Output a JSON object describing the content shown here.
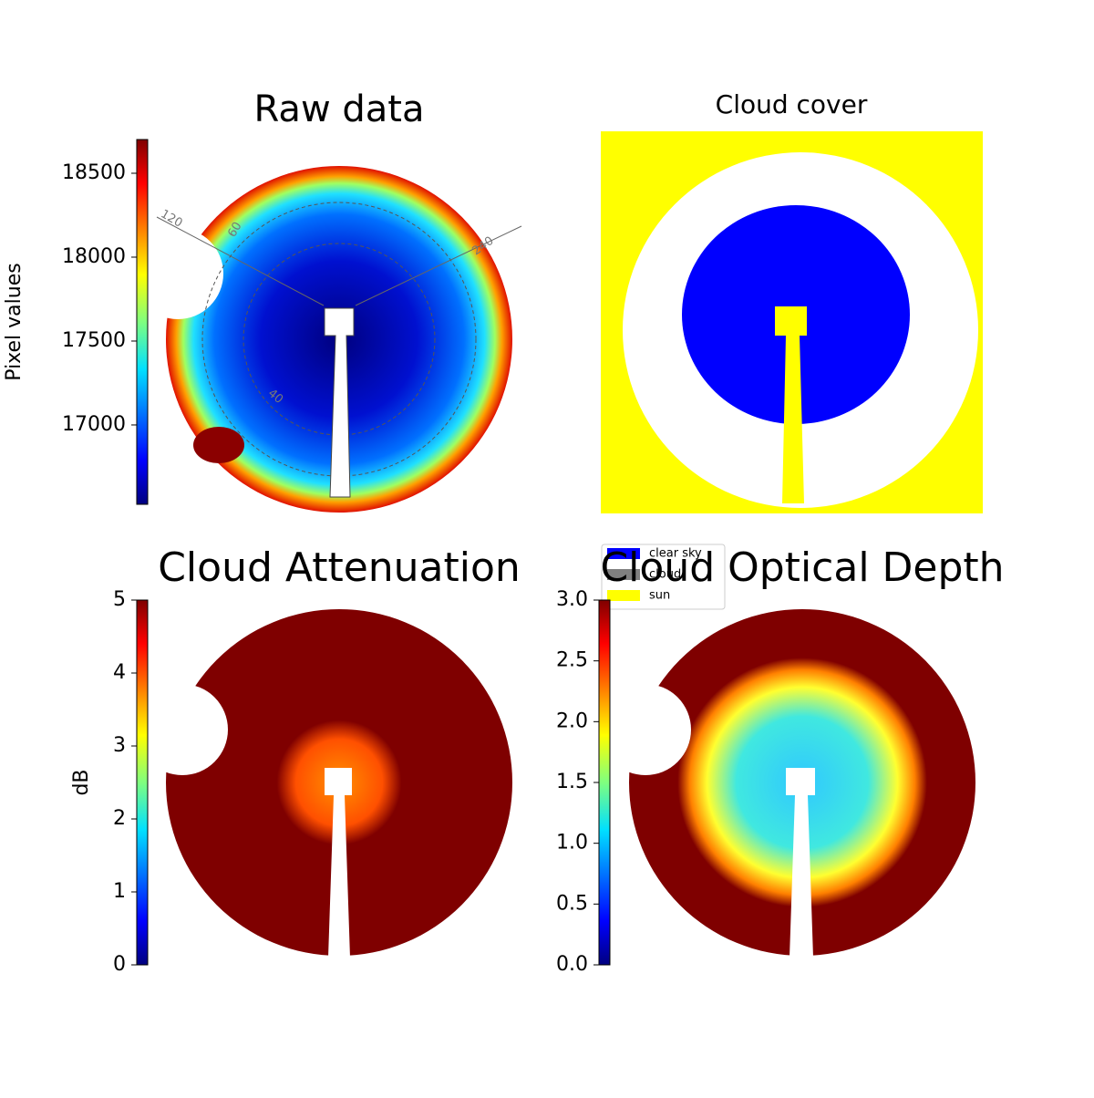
{
  "chart_data": [
    {
      "type": "image",
      "title": "Raw data",
      "colorbar_label": "Pixel values",
      "clim": [
        16527,
        18701
      ],
      "cticks": [
        17000,
        17500,
        18000,
        18500
      ],
      "annotations": [
        "120",
        "60",
        "240",
        "40"
      ]
    },
    {
      "type": "image",
      "title": "Cloud cover",
      "legend": [
        {
          "name": "clear sky",
          "color": "#0000ff"
        },
        {
          "name": "cloud",
          "color": "#808080"
        },
        {
          "name": "sun",
          "color": "#ffff00"
        }
      ]
    },
    {
      "type": "image",
      "title": "Cloud Attenuation",
      "colorbar_label": "dB",
      "clim": [
        0,
        5
      ],
      "cticks": [
        0,
        1,
        2,
        3,
        4,
        5
      ]
    },
    {
      "type": "image",
      "title": "Cloud Optical Depth",
      "clim": [
        0,
        3
      ],
      "cticks": [
        {
          "value": 0,
          "label": "0.0"
        },
        0.5,
        {
          "value": 1,
          "label": "1.0"
        },
        1.5,
        {
          "value": 2,
          "label": "2.0"
        },
        2.5,
        {
          "value": 3,
          "label": "3.0"
        }
      ]
    }
  ]
}
